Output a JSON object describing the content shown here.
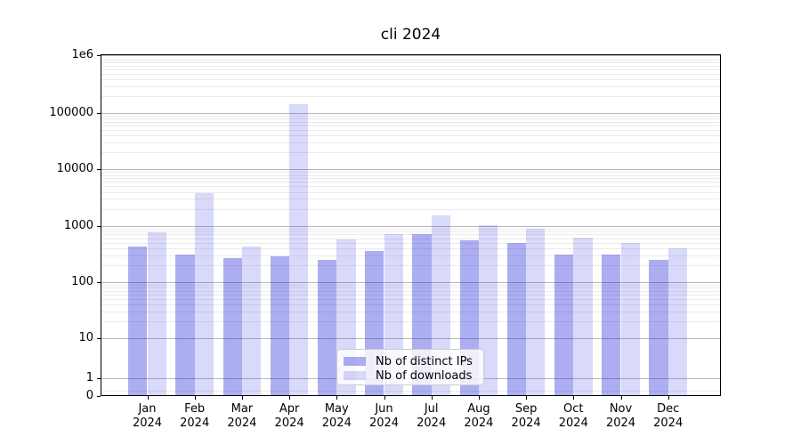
{
  "title": "cli 2024",
  "y_axis": {
    "tick_labels": [
      "1e6",
      "100000",
      "10000",
      "1000",
      "100",
      "10",
      "1",
      "0"
    ]
  },
  "x_axis": {
    "months": [
      "Jan",
      "Feb",
      "Mar",
      "Apr",
      "May",
      "Jun",
      "Jul",
      "Aug",
      "Sep",
      "Oct",
      "Nov",
      "Dec"
    ],
    "year": "2024"
  },
  "legend": {
    "entries": [
      "Nb of distinct IPs",
      "Nb of downloads"
    ]
  },
  "colors": {
    "bar_base": "#1414d7",
    "bar_distinct_ips_flat": "#adadf1",
    "bar_downloads_flat": "#d9d9f9",
    "grid_major": "#b9b9b9",
    "grid_minor": "#ebebeb"
  },
  "chart_data": {
    "type": "bar",
    "title": "cli 2024",
    "categories": [
      "Jan 2024",
      "Feb 2024",
      "Mar 2024",
      "Apr 2024",
      "May 2024",
      "Jun 2024",
      "Jul 2024",
      "Aug 2024",
      "Sep 2024",
      "Oct 2024",
      "Nov 2024",
      "Dec 2024"
    ],
    "series": [
      {
        "name": "Nb of distinct IPs",
        "color": "#1414d7",
        "alpha": 0.35,
        "values": [
          430,
          310,
          265,
          290,
          250,
          350,
          720,
          545,
          490,
          310,
          310,
          245
        ]
      },
      {
        "name": "Nb of downloads",
        "color": "#1414d7",
        "alpha": 0.16,
        "values": [
          760,
          3800,
          430,
          145000,
          580,
          700,
          1550,
          1040,
          880,
          620,
          490,
          400
        ]
      }
    ],
    "yscale": "symlog",
    "ylim": [
      0,
      1000000
    ],
    "ytick_values": [
      1000000,
      100000,
      10000,
      1000,
      100,
      10,
      1,
      0
    ],
    "grid": true,
    "legend_position": "lower center"
  }
}
